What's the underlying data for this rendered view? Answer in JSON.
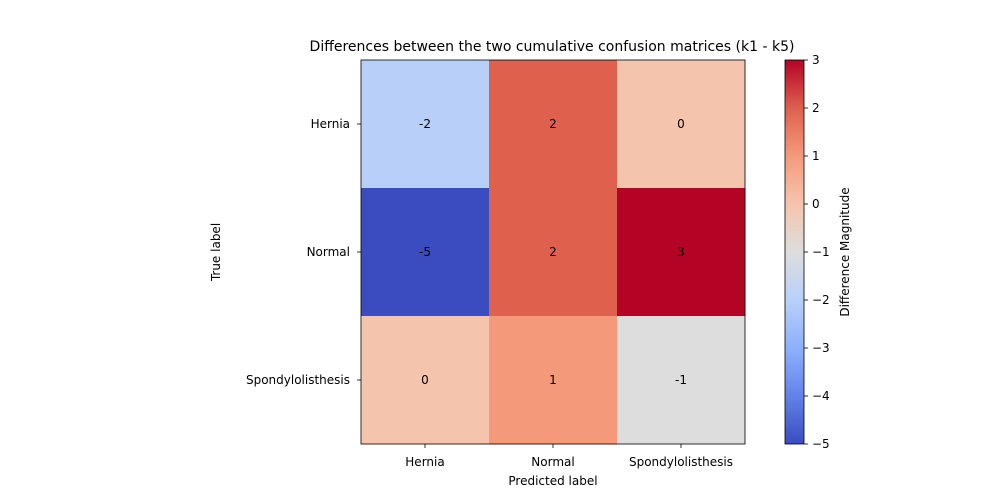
{
  "chart_data": {
    "type": "heatmap",
    "title": "Differences between the two cumulative confusion matrices (k1 - k5)",
    "xlabel": "Predicted label",
    "ylabel": "True label",
    "x_categories": [
      "Hernia",
      "Normal",
      "Spondylolisthesis"
    ],
    "y_categories": [
      "Hernia",
      "Normal",
      "Spondylolisthesis"
    ],
    "values": [
      [
        -2,
        2,
        0
      ],
      [
        -5,
        2,
        3
      ],
      [
        0,
        1,
        -1
      ]
    ],
    "colorbar": {
      "label": "Difference Magnitude",
      "colormap": "coolwarm",
      "range": [
        -5,
        3
      ],
      "ticks": [
        3,
        2,
        1,
        0,
        -1,
        -2,
        -3,
        -4,
        -5
      ],
      "tick_labels": [
        "3",
        "2",
        "1",
        "0",
        "−1",
        "−2",
        "−3",
        "−4",
        "−5"
      ]
    }
  }
}
